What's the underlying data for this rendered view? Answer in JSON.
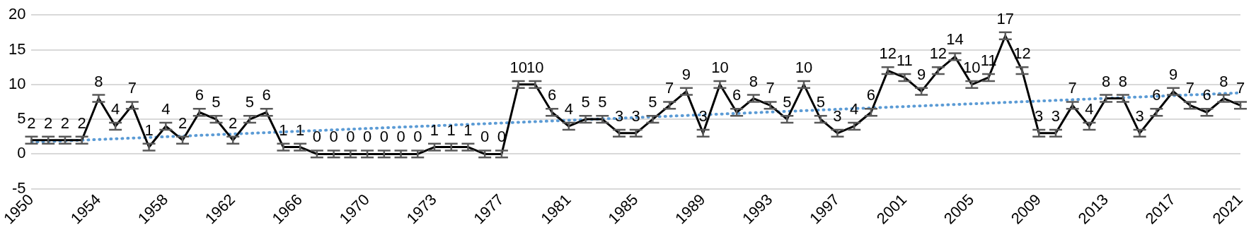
{
  "chart_data": {
    "type": "line",
    "categories": [
      "1950",
      null,
      null,
      null,
      "1954",
      null,
      null,
      null,
      "1958",
      null,
      null,
      null,
      "1962",
      null,
      null,
      null,
      "1966",
      null,
      null,
      null,
      "1970",
      null,
      null,
      null,
      "1973",
      null,
      null,
      null,
      "1977",
      null,
      null,
      null,
      "1981",
      null,
      null,
      null,
      "1985",
      null,
      null,
      null,
      "1989",
      null,
      null,
      null,
      "1993",
      null,
      null,
      null,
      "1997",
      null,
      null,
      null,
      "2001",
      null,
      null,
      null,
      "2005",
      null,
      null,
      null,
      "2009",
      null,
      null,
      null,
      "2013",
      null,
      null,
      null,
      "2017",
      null,
      null,
      null,
      "2021"
    ],
    "series": [
      {
        "color": "#000000",
        "values": [
          2,
          2,
          2,
          2,
          8,
          4,
          7,
          1,
          4,
          2,
          6,
          5,
          2,
          5,
          6,
          1,
          1,
          0,
          0,
          0,
          0,
          0,
          0,
          0,
          1,
          1,
          1,
          0,
          0,
          10,
          10,
          6,
          4,
          5,
          5,
          3,
          3,
          5,
          7,
          9,
          3,
          10,
          6,
          8,
          7,
          5,
          10,
          5,
          3,
          4,
          6,
          12,
          11,
          9,
          12,
          14,
          10,
          11,
          17,
          12,
          3,
          3,
          7,
          4,
          8,
          8,
          3,
          6,
          9,
          7,
          6,
          8,
          7
        ],
        "value_labels": [
          "2",
          "2",
          "2",
          "2",
          "8",
          "4",
          "7",
          "1",
          "4",
          "2",
          "6",
          "5",
          "2",
          "5",
          "6",
          "1",
          "1",
          "0",
          "0",
          "0",
          "0",
          "0",
          "0",
          "0",
          "1",
          "1",
          "1",
          "0",
          "0",
          "10",
          "10",
          "6",
          "4",
          "5",
          "5",
          "3",
          "3",
          "5",
          "7",
          "9",
          "3",
          "10",
          "6",
          "8",
          "7",
          "5",
          "10",
          "5",
          "3",
          "4",
          "6",
          "12",
          "11",
          "9",
          "12",
          "14",
          "10",
          "11",
          "17",
          "12",
          "3",
          "3",
          "7",
          "4",
          "8",
          "8",
          "3",
          "6",
          "9",
          "7",
          "6",
          "8",
          "7"
        ],
        "errors": [
          0.5,
          0.5,
          0.5,
          0.5,
          0.5,
          0.5,
          0.5,
          0.5,
          0.5,
          0.5,
          0.5,
          0.5,
          0.5,
          0.5,
          0.5,
          0.5,
          0.5,
          0.5,
          0.5,
          0.5,
          0.5,
          0.5,
          0.5,
          0.5,
          0.5,
          0.5,
          0.5,
          0.5,
          0.5,
          0.5,
          0.5,
          0.5,
          0.5,
          0.5,
          0.5,
          0.5,
          0.5,
          0.5,
          0.5,
          0.5,
          0.5,
          0.5,
          0.5,
          0.5,
          0.5,
          0.5,
          0.5,
          0.5,
          0.5,
          0.5,
          0.5,
          0.5,
          0.5,
          0.5,
          0.5,
          0.5,
          0.5,
          0.5,
          0.5,
          0.5,
          0.5,
          0.5,
          0.5,
          0.5,
          0.5,
          0.5,
          0.5,
          0.5,
          0.5,
          0.5,
          0.5,
          0.5,
          0.5
        ]
      },
      {
        "type": "line",
        "color": "#5b9bd5",
        "line_style": "dotted",
        "values": [
          1.7,
          null,
          null,
          null,
          null,
          null,
          null,
          null,
          null,
          null,
          null,
          null,
          null,
          null,
          null,
          null,
          null,
          null,
          null,
          null,
          null,
          null,
          null,
          null,
          null,
          null,
          null,
          null,
          null,
          null,
          null,
          null,
          null,
          null,
          null,
          null,
          null,
          null,
          null,
          null,
          null,
          null,
          null,
          null,
          null,
          null,
          null,
          null,
          null,
          null,
          null,
          null,
          null,
          null,
          null,
          null,
          null,
          null,
          null,
          null,
          null,
          null,
          null,
          null,
          null,
          null,
          null,
          null,
          null,
          null,
          null,
          null,
          8.8
        ]
      }
    ],
    "ylim": [
      -5,
      20
    ],
    "yticks": [
      -5,
      0,
      5,
      10,
      15,
      20
    ],
    "grid": "y"
  }
}
